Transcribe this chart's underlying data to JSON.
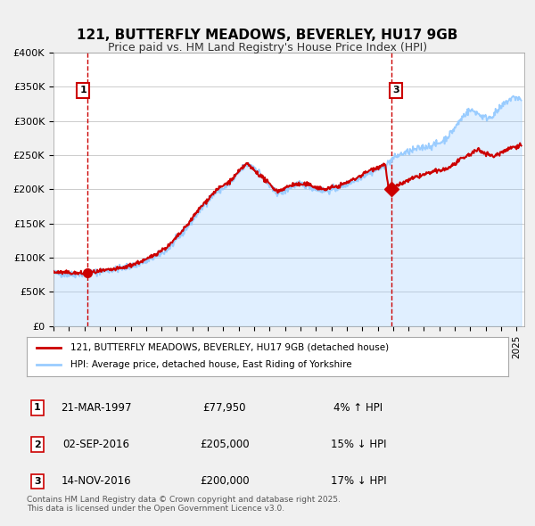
{
  "title": "121, BUTTERFLY MEADOWS, BEVERLEY, HU17 9GB",
  "subtitle": "Price paid vs. HM Land Registry's House Price Index (HPI)",
  "legend_label_red": "121, BUTTERFLY MEADOWS, BEVERLEY, HU17 9GB (detached house)",
  "legend_label_blue": "HPI: Average price, detached house, East Riding of Yorkshire",
  "ylabel": "",
  "ylim": [
    0,
    400000
  ],
  "yticks": [
    0,
    50000,
    100000,
    150000,
    200000,
    250000,
    300000,
    350000,
    400000
  ],
  "ytick_labels": [
    "£0",
    "£50K",
    "£100K",
    "£150K",
    "£200K",
    "£250K",
    "£300K",
    "£350K",
    "£400K"
  ],
  "xmin": 1995.0,
  "xmax": 2025.5,
  "transaction1_x": 1997.22,
  "transaction1_y": 77950,
  "transaction1_label": "1",
  "transaction2_x": 2016.67,
  "transaction2_y": 205000,
  "transaction2_label": "2",
  "transaction3_x": 2016.87,
  "transaction3_y": 200000,
  "transaction3_label": "3",
  "vline1_x": 1997.22,
  "vline2_x": 2016.87,
  "color_red": "#cc0000",
  "color_blue": "#99ccff",
  "color_vline": "#cc0000",
  "bg_color": "#f0f0f0",
  "plot_bg_color": "#ffffff",
  "footer_text": "Contains HM Land Registry data © Crown copyright and database right 2025.\nThis data is licensed under the Open Government Licence v3.0.",
  "table_rows": [
    {
      "num": "1",
      "date": "21-MAR-1997",
      "price": "£77,950",
      "hpi": "4% ↑ HPI"
    },
    {
      "num": "2",
      "date": "02-SEP-2016",
      "price": "£205,000",
      "hpi": "15% ↓ HPI"
    },
    {
      "num": "3",
      "date": "14-NOV-2016",
      "price": "£200,000",
      "hpi": "17% ↓ HPI"
    }
  ]
}
